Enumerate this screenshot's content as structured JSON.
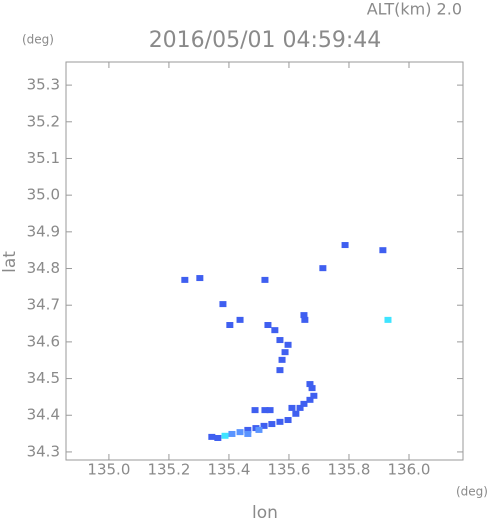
{
  "chart_data": {
    "type": "scatter",
    "title": "2016/05/01 04:59:44",
    "annotation": "ALT(km) 2.0",
    "x_label": "lon",
    "y_label": "lat",
    "x_unit": "(deg)",
    "y_unit": "(deg)",
    "marker": "square",
    "xlim": [
      134.857,
      136.18
    ],
    "ylim": [
      34.278,
      35.363
    ],
    "xticks": [
      {
        "value": 135,
        "label": "135.0"
      },
      135.2,
      135.4,
      135.6,
      135.8,
      {
        "value": 136,
        "label": "136.0"
      }
    ],
    "yticks": [
      34.3,
      34.4,
      34.5,
      34.6,
      34.7,
      34.8,
      34.9,
      {
        "value": 35,
        "label": "35.0"
      },
      35.1,
      35.2,
      35.3
    ],
    "series": [
      {
        "color": "#3f5ff0",
        "x": [
          135.343,
          135.363,
          135.463,
          135.49,
          135.517,
          135.543,
          135.57,
          135.597,
          135.61,
          135.623,
          135.637,
          135.65,
          135.67,
          135.683,
          135.677,
          135.67,
          135.52,
          135.487,
          135.537,
          135.57,
          135.577,
          135.587,
          135.597,
          135.57,
          135.553,
          135.53,
          135.653,
          135.65,
          135.437,
          135.403,
          135.253,
          135.303,
          135.52,
          135.713,
          135.787,
          135.913,
          135.38
        ],
        "y": [
          34.341,
          34.338,
          34.36,
          34.365,
          34.371,
          34.376,
          34.382,
          34.387,
          34.42,
          34.404,
          34.42,
          34.431,
          34.442,
          34.453,
          34.474,
          34.485,
          34.414,
          34.414,
          34.414,
          34.523,
          34.551,
          34.572,
          34.592,
          34.605,
          34.632,
          34.646,
          34.66,
          34.673,
          34.66,
          34.646,
          34.769,
          34.774,
          34.769,
          34.801,
          34.864,
          34.85,
          34.703
        ]
      },
      {
        "color": "#5a94ff",
        "x": [
          135.41,
          135.437,
          135.463,
          135.5
        ],
        "y": [
          34.349,
          34.354,
          34.349,
          34.36
        ]
      },
      {
        "color": "#3fe4ff",
        "x": [
          135.387,
          135.93
        ],
        "y": [
          34.344,
          34.66
        ]
      }
    ]
  }
}
